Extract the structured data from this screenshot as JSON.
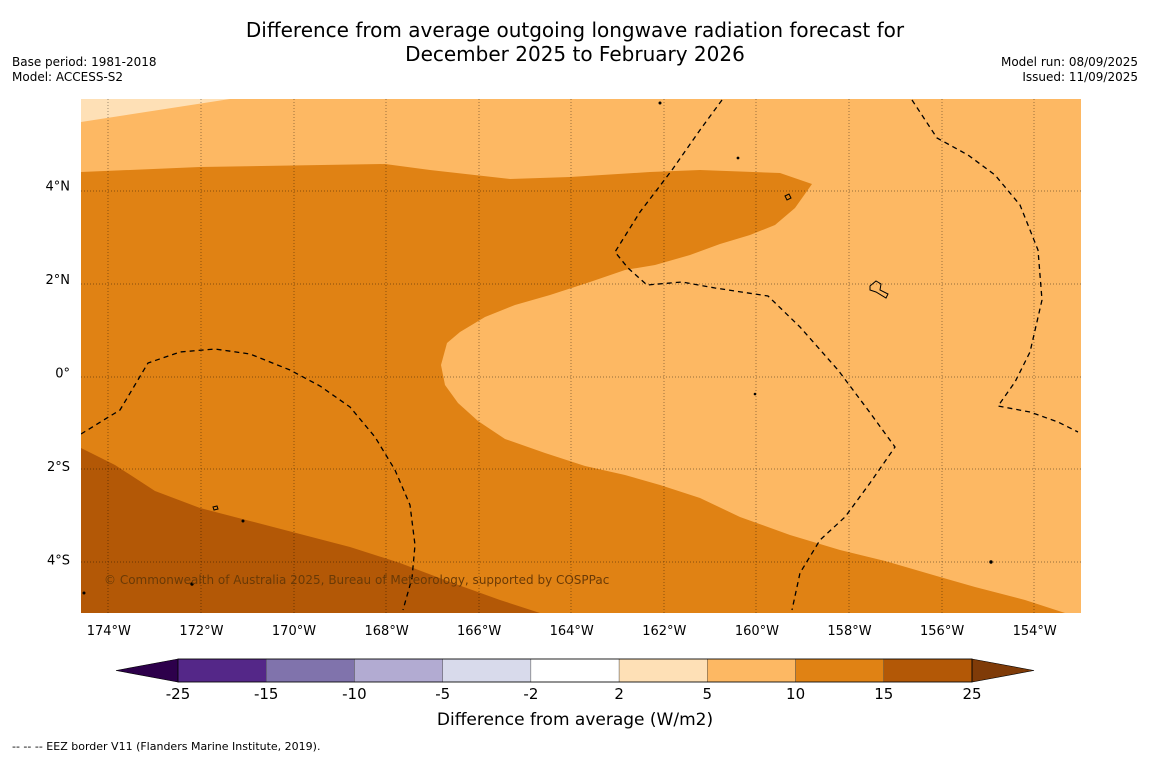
{
  "title": {
    "line1": "Difference from average outgoing longwave radiation forecast for",
    "line2": "December 2025 to February 2026"
  },
  "meta_left": {
    "base_period": "Base period: 1981-2018",
    "model": "Model: ACCESS-S2"
  },
  "meta_right": {
    "model_run": "Model run: 08/09/2025",
    "issued": "Issued: 11/09/2025"
  },
  "map": {
    "lon_range": [
      -174.6,
      -153.0
    ],
    "lat_range": [
      -5.15,
      5.85
    ],
    "lon_ticks": [
      {
        "value": -174,
        "label": "174°W"
      },
      {
        "value": -172,
        "label": "172°W"
      },
      {
        "value": -170,
        "label": "170°W"
      },
      {
        "value": -168,
        "label": "168°W"
      },
      {
        "value": -166,
        "label": "166°W"
      },
      {
        "value": -164,
        "label": "164°W"
      },
      {
        "value": -162,
        "label": "162°W"
      },
      {
        "value": -160,
        "label": "160°W"
      },
      {
        "value": -158,
        "label": "158°W"
      },
      {
        "value": -156,
        "label": "156°W"
      },
      {
        "value": -154,
        "label": "154°W"
      }
    ],
    "lat_ticks": [
      {
        "value": 4,
        "label": "4°N"
      },
      {
        "value": 2,
        "label": "2°N"
      },
      {
        "value": 0,
        "label": "0°"
      },
      {
        "value": -2,
        "label": "2°S"
      },
      {
        "value": -4,
        "label": "4°S"
      }
    ],
    "copyright": "© Commonwealth of Australia 2025, Bureau of Meteorology, supported by COSPPac"
  },
  "colorbar": {
    "boundaries": [
      -25,
      -15,
      -10,
      -5,
      -2,
      2,
      5,
      10,
      15,
      25
    ],
    "colors": [
      "#542788",
      "#8073ac",
      "#b2abd2",
      "#d8daeb",
      "#ffffff",
      "#fee0b6",
      "#fdb863",
      "#e08214",
      "#b35806"
    ],
    "under_color": "#2d004b",
    "over_color": "#7f3b08",
    "label": "Difference from average (W/m2)"
  },
  "footer": "--  --  -- EEZ border V11 (Flanders Marine Institute, 2019)."
}
